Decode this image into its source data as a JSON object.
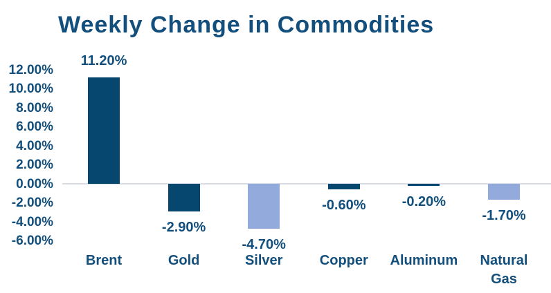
{
  "chart_data": {
    "type": "bar",
    "title": "Weekly Change in Commodities",
    "categories": [
      "Brent",
      "Gold",
      "Silver",
      "Copper",
      "Aluminum",
      "Natural Gas"
    ],
    "x_tick_labels": [
      "Brent",
      "Gold",
      "Silver",
      "Copper",
      "Aluminum",
      "Natural\nGas"
    ],
    "values": [
      11.2,
      -2.9,
      -4.7,
      -0.6,
      -0.2,
      -1.7
    ],
    "data_labels": [
      "11.20%",
      "-2.90%",
      "-4.70%",
      "-0.60%",
      "-0.20%",
      "-1.70%"
    ],
    "bar_colors": [
      "#05476E",
      "#05476E",
      "#93ABDC",
      "#05476E",
      "#05476E",
      "#93ABDC"
    ],
    "ylim": [
      -6,
      12
    ],
    "ytick_step": 2,
    "ytick_labels": [
      "12.00%",
      "10.00%",
      "8.00%",
      "6.00%",
      "4.00%",
      "2.00%",
      "0.00%",
      "-2.00%",
      "-4.00%",
      "-6.00%"
    ],
    "grid": "zero-line-only",
    "legend": "none",
    "colors": {
      "dark_blue": "#05476E",
      "light_blue": "#93ABDC",
      "text": "#134F7C",
      "zero_line": "#D9DDE3"
    }
  }
}
